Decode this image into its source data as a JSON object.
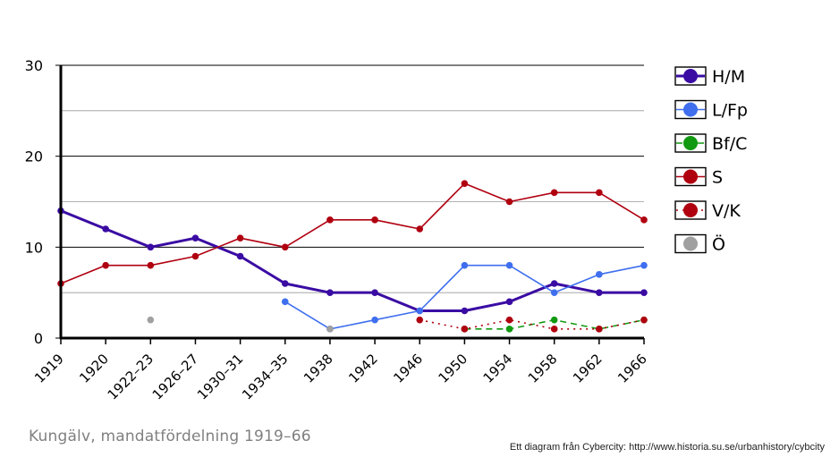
{
  "chart_data": {
    "type": "line",
    "title": "Kungälv, mandatfördelning 1919–66",
    "credit": "Ett diagram från Cybercity: http://www.historia.su.se/urbanhistory/cybcity",
    "categories": [
      "1919",
      "1920",
      "1922–23",
      "1926–27",
      "1930–31",
      "1934–35",
      "1938",
      "1942",
      "1946",
      "1950",
      "1954",
      "1958",
      "1962",
      "1966"
    ],
    "ylim": [
      0,
      30
    ],
    "yticks": [
      0,
      10,
      20,
      30
    ],
    "grid": true,
    "legend_position": "right",
    "series": [
      {
        "name": "H/M",
        "color": "#3a0ca3",
        "style": "solid",
        "width": 3,
        "values": [
          14,
          12,
          10,
          11,
          9,
          6,
          5,
          5,
          3,
          3,
          4,
          6,
          5,
          5
        ]
      },
      {
        "name": "L/Fp",
        "color": "#3f6fef",
        "style": "solid",
        "width": 1.6,
        "values": [
          null,
          null,
          null,
          null,
          null,
          4,
          1,
          2,
          3,
          8,
          8,
          5,
          7,
          8
        ]
      },
      {
        "name": "Bf/C",
        "color": "#119911",
        "style": "dashed",
        "width": 1.6,
        "values": [
          null,
          null,
          null,
          null,
          null,
          null,
          null,
          null,
          null,
          1,
          1,
          2,
          1,
          2
        ]
      },
      {
        "name": "S",
        "color": "#b00010",
        "style": "solid",
        "width": 1.6,
        "values": [
          6,
          8,
          8,
          9,
          11,
          10,
          13,
          13,
          12,
          17,
          15,
          16,
          16,
          13
        ]
      },
      {
        "name": "V/K",
        "color": "#b00010",
        "style": "dotted",
        "width": 1.6,
        "values": [
          null,
          null,
          null,
          null,
          null,
          null,
          null,
          null,
          2,
          1,
          2,
          1,
          1,
          2
        ]
      },
      {
        "name": "Ö",
        "color": "#a0a0a0",
        "style": "none",
        "width": 1.6,
        "values": [
          null,
          null,
          2,
          null,
          null,
          null,
          1,
          null,
          null,
          null,
          null,
          null,
          null,
          null
        ]
      }
    ]
  }
}
